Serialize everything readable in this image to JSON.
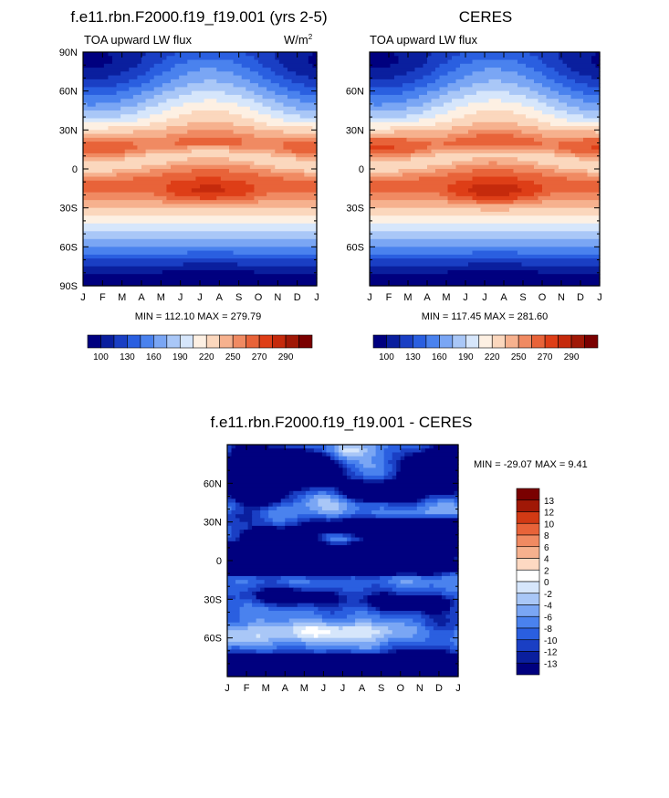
{
  "palette_model": [
    "#00007f",
    "#0a1f9e",
    "#1a3fc4",
    "#2a5fe0",
    "#4a82ee",
    "#7aa6f4",
    "#a9c7f7",
    "#d6e6fb",
    "#fdf0e3",
    "#fbd7bd",
    "#f6b18e",
    "#f08a62",
    "#e86339",
    "#de3e17",
    "#c52a0c",
    "#a01806",
    "#7a0000"
  ],
  "palette_diff": [
    "#00007f",
    "#0a1f9e",
    "#1a3fc4",
    "#2a5fe0",
    "#4a82ee",
    "#7aa6f4",
    "#a9c7f7",
    "#d6e6fb",
    "#ffffff",
    "#fdd9c2",
    "#f6b18e",
    "#f08a62",
    "#e86339",
    "#d23a14",
    "#a01806",
    "#7a0000"
  ],
  "chart_data": [
    {
      "type": "heatmap",
      "title": "f.e11.rbn.F2000.f19_f19.001 (yrs 2-5)",
      "left_label": "TOA upward LW flux",
      "units": "W/m",
      "units_sup": "2",
      "stats": "MIN = 112.10 MAX = 279.79",
      "x_ticks": [
        "J",
        "F",
        "M",
        "A",
        "M",
        "J",
        "J",
        "A",
        "S",
        "O",
        "N",
        "D",
        "J"
      ],
      "y_ticks": [
        "90N",
        "60N",
        "30N",
        "0",
        "30S",
        "60S",
        "90S"
      ],
      "colorbar_labels": [
        "100",
        "130",
        "160",
        "190",
        "220",
        "250",
        "270",
        "290"
      ],
      "min": 112.1,
      "max": 279.79
    },
    {
      "type": "heatmap",
      "title": "CERES",
      "left_label": "TOA upward LW flux",
      "stats": "MIN = 117.45 MAX = 281.60",
      "x_ticks": [
        "J",
        "F",
        "M",
        "A",
        "M",
        "J",
        "J",
        "A",
        "S",
        "O",
        "N",
        "D",
        "J"
      ],
      "y_ticks": [
        "60N",
        "30N",
        "0",
        "30S",
        "60S"
      ],
      "colorbar_labels": [
        "100",
        "130",
        "160",
        "190",
        "220",
        "250",
        "270",
        "290"
      ],
      "min": 117.45,
      "max": 281.6
    },
    {
      "type": "heatmap",
      "title": "f.e11.rbn.F2000.f19_f19.001 - CERES",
      "stats": "MIN = -29.07 MAX =   9.41",
      "x_ticks": [
        "J",
        "F",
        "M",
        "A",
        "M",
        "J",
        "J",
        "A",
        "S",
        "O",
        "N",
        "D",
        "J"
      ],
      "y_ticks": [
        "60N",
        "30N",
        "0",
        "30S",
        "60S"
      ],
      "colorbar_labels": [
        "13",
        "12",
        "10",
        "8",
        "6",
        "4",
        "2",
        "0",
        "-2",
        "-4",
        "-6",
        "-8",
        "-10",
        "-12",
        "-13"
      ],
      "min": -29.07,
      "max": 9.41
    }
  ]
}
